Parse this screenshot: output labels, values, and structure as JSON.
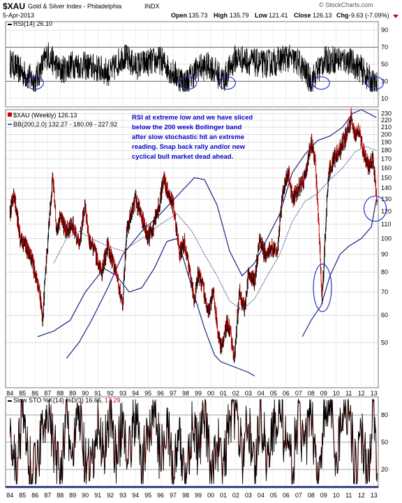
{
  "header": {
    "symbol": "$XAU",
    "name": "Gold & Silver Index - Philadelphia",
    "exchange": "INDX",
    "date": "5-Apr-2013",
    "open_label": "Open",
    "open": "135.73",
    "high_label": "High",
    "high": "135.79",
    "low_label": "Low",
    "low": "121.41",
    "close_label": "Close",
    "close": "126.13",
    "chg_label": "Chg",
    "chg": "-9.63 (-7.09%)",
    "watermark": "© StockCharts.com"
  },
  "colors": {
    "price": "#000000",
    "down": "#cc0000",
    "bollinger": "#1a237e",
    "circle": "#2233cc",
    "annotation": "#0000cc",
    "sto_d": "#cc0000"
  },
  "chart_data": [
    {
      "type": "line",
      "panel": "rsi",
      "legend": "RSI(14) 26.10",
      "yticks": [
        10,
        30,
        50,
        70,
        90
      ],
      "ylim": [
        0,
        100
      ],
      "reference_lines": [
        30,
        70
      ],
      "x": [
        1984,
        1985,
        1986,
        1987,
        1988,
        1989,
        1990,
        1991,
        1992,
        1993,
        1994,
        1995,
        1996,
        1997,
        1998,
        1999,
        2000,
        2001,
        2002,
        2003,
        2004,
        2005,
        2006,
        2007,
        2008,
        2009,
        2010,
        2011,
        2012,
        2013
      ],
      "values": [
        52,
        40,
        30,
        62,
        42,
        50,
        48,
        45,
        40,
        60,
        48,
        52,
        55,
        40,
        28,
        46,
        48,
        31,
        58,
        54,
        50,
        52,
        58,
        52,
        30,
        54,
        56,
        54,
        44,
        26
      ],
      "circles_at": [
        1986,
        1998.2,
        2001.3,
        2008.8,
        2013.1
      ]
    },
    {
      "type": "line",
      "panel": "price",
      "scale": "log",
      "legend_series": "$XAU (Weekly) 126.13",
      "legend_bb": "BB(200,2.0) 132.27 - 180.09 - 227.92",
      "yticks": [
        50,
        60,
        70,
        80,
        90,
        100,
        110,
        120,
        130,
        140,
        150,
        160,
        170,
        180,
        190,
        200,
        210,
        220,
        230
      ],
      "ylim": [
        37,
        236
      ],
      "xticks": [
        "84",
        "85",
        "86",
        "87",
        "88",
        "89",
        "90",
        "91",
        "92",
        "93",
        "94",
        "95",
        "96",
        "97",
        "98",
        "99",
        "00",
        "01",
        "02",
        "03",
        "04",
        "05",
        "06",
        "07",
        "08",
        "09",
        "10",
        "11",
        "12",
        "13"
      ],
      "x": [
        1984.0,
        1984.3,
        1984.8,
        1985.3,
        1985.8,
        1986.3,
        1986.6,
        1987.0,
        1987.4,
        1987.7,
        1988.0,
        1988.5,
        1989.0,
        1989.5,
        1990.0,
        1990.3,
        1990.8,
        1991.3,
        1991.8,
        1992.3,
        1992.8,
        1993.0,
        1993.3,
        1993.7,
        1994.0,
        1994.5,
        1995.0,
        1995.5,
        1996.0,
        1996.2,
        1996.6,
        1997.0,
        1997.5,
        1997.9,
        1998.3,
        1998.7,
        1999.0,
        1999.4,
        1999.8,
        2000.2,
        2000.6,
        2000.9,
        2001.3,
        2001.6,
        2001.9,
        2002.3,
        2002.7,
        2003.0,
        2003.5,
        2003.9,
        2004.3,
        2004.8,
        2005.3,
        2005.8,
        2006.2,
        2006.5,
        2007.0,
        2007.5,
        2008.0,
        2008.3,
        2008.6,
        2008.85,
        2009.0,
        2009.4,
        2009.8,
        2010.3,
        2010.8,
        2011.2,
        2011.5,
        2011.8,
        2012.2,
        2012.6,
        2012.9,
        2013.1,
        2013.27
      ],
      "values": [
        118,
        135,
        100,
        95,
        85,
        72,
        58,
        95,
        150,
        105,
        115,
        105,
        110,
        95,
        125,
        100,
        90,
        80,
        95,
        82,
        70,
        65,
        105,
        120,
        130,
        115,
        100,
        110,
        130,
        150,
        135,
        125,
        90,
        98,
        80,
        66,
        80,
        72,
        60,
        70,
        52,
        48,
        58,
        52,
        45,
        70,
        62,
        80,
        75,
        100,
        90,
        95,
        90,
        140,
        155,
        130,
        140,
        150,
        190,
        170,
        110,
        68,
        80,
        155,
        170,
        180,
        200,
        225,
        200,
        205,
        175,
        160,
        170,
        150,
        126
      ],
      "bb_upper": [
        {
          "x": 1988.5,
          "y": 45
        },
        {
          "x": 1989.5,
          "y": 50
        },
        {
          "x": 1990.5,
          "y": 58
        },
        {
          "x": 1991.8,
          "y": 72
        },
        {
          "x": 1993,
          "y": 90
        },
        {
          "x": 1994.5,
          "y": 105
        },
        {
          "x": 1996,
          "y": 118
        },
        {
          "x": 1997.5,
          "y": 135
        },
        {
          "x": 1998.7,
          "y": 150
        },
        {
          "x": 1999.5,
          "y": 148
        },
        {
          "x": 2000.5,
          "y": 125
        },
        {
          "x": 2001.5,
          "y": 92
        },
        {
          "x": 2002.5,
          "y": 78
        },
        {
          "x": 2003.5,
          "y": 85
        },
        {
          "x": 2004.5,
          "y": 100
        },
        {
          "x": 2005.5,
          "y": 118
        },
        {
          "x": 2006.5,
          "y": 155
        },
        {
          "x": 2007.5,
          "y": 175
        },
        {
          "x": 2008.5,
          "y": 192
        },
        {
          "x": 2009.5,
          "y": 198
        },
        {
          "x": 2010.5,
          "y": 210
        },
        {
          "x": 2011.3,
          "y": 230
        },
        {
          "x": 2012,
          "y": 236
        },
        {
          "x": 2013.2,
          "y": 224
        }
      ],
      "bb_middle": [
        {
          "x": 1987.5,
          "y": 85
        },
        {
          "x": 1988.5,
          "y": 100
        },
        {
          "x": 1989.5,
          "y": 105
        },
        {
          "x": 1990.5,
          "y": 100
        },
        {
          "x": 1991.8,
          "y": 95
        },
        {
          "x": 1993,
          "y": 92
        },
        {
          "x": 1994.5,
          "y": 100
        },
        {
          "x": 1996,
          "y": 110
        },
        {
          "x": 1997.3,
          "y": 118
        },
        {
          "x": 1998.5,
          "y": 105
        },
        {
          "x": 1999.5,
          "y": 90
        },
        {
          "x": 2000.5,
          "y": 78
        },
        {
          "x": 2001.5,
          "y": 66
        },
        {
          "x": 2002.5,
          "y": 62
        },
        {
          "x": 2003.5,
          "y": 67
        },
        {
          "x": 2004.5,
          "y": 78
        },
        {
          "x": 2005.5,
          "y": 90
        },
        {
          "x": 2006.5,
          "y": 112
        },
        {
          "x": 2007.5,
          "y": 128
        },
        {
          "x": 2008.5,
          "y": 135
        },
        {
          "x": 2009.5,
          "y": 148
        },
        {
          "x": 2010.5,
          "y": 160
        },
        {
          "x": 2011.5,
          "y": 178
        },
        {
          "x": 2012.3,
          "y": 185
        },
        {
          "x": 2013.2,
          "y": 180
        }
      ],
      "bb_lower": [
        {
          "x": 1986.2,
          "y": 52
        },
        {
          "x": 1987.5,
          "y": 54
        },
        {
          "x": 1988.8,
          "y": 58
        },
        {
          "x": 1990,
          "y": 70
        },
        {
          "x": 1991.5,
          "y": 82
        },
        {
          "x": 1992.5,
          "y": 78
        },
        {
          "x": 1993.5,
          "y": 70
        },
        {
          "x": 1994.5,
          "y": 72
        },
        {
          "x": 1995.5,
          "y": 82
        },
        {
          "x": 1996.5,
          "y": 98
        },
        {
          "x": 1997.3,
          "y": 100
        },
        {
          "x": 1997.8,
          "y": 88
        },
        {
          "x": 1998.5,
          "y": 72
        },
        {
          "x": 1999.5,
          "y": 55
        },
        {
          "x": 2000.3,
          "y": 46
        },
        {
          "x": 2000.8,
          "y": 44
        },
        {
          "x": 2003,
          "y": 41
        },
        {
          "x": 2003.5,
          "y": 40
        }
      ],
      "bb_lower_recent": [
        {
          "x": 2007.3,
          "y": 52
        },
        {
          "x": 2008,
          "y": 58
        },
        {
          "x": 2008.8,
          "y": 64
        },
        {
          "x": 2009.5,
          "y": 78
        },
        {
          "x": 2010.3,
          "y": 90
        },
        {
          "x": 2011,
          "y": 95
        },
        {
          "x": 2012,
          "y": 100
        },
        {
          "x": 2012.8,
          "y": 108
        },
        {
          "x": 2013.2,
          "y": 130
        }
      ],
      "annotation": [
        "RSI at extreme low and we have sliced",
        "below the 200 week Bollinger band",
        "after slow stochastic hit an extreme",
        "reading. Snap back rally and/or new",
        "cyclical bull market dead ahead."
      ],
      "circles_at": [
        {
          "x": 2008.9,
          "y": 72
        },
        {
          "x": 2013.1,
          "y": 122
        }
      ]
    },
    {
      "type": "line",
      "panel": "stochastic",
      "legend_prefix": "Slow STO %K(14) %D(3)",
      "legend_k": "16.66",
      "legend_d": "17.29",
      "yticks": [
        20,
        50,
        80
      ],
      "ylim": [
        0,
        100
      ],
      "reference_lines": [
        20,
        80
      ],
      "x": [
        1984,
        1984.5,
        1985,
        1985.5,
        1986,
        1986.5,
        1987,
        1987.5,
        1988,
        1988.5,
        1989,
        1989.5,
        1990,
        1990.5,
        1991,
        1991.5,
        1992,
        1992.5,
        1993,
        1993.5,
        1994,
        1994.5,
        1995,
        1995.5,
        1996,
        1996.5,
        1997,
        1997.5,
        1998,
        1998.5,
        1999,
        1999.5,
        2000,
        2000.5,
        2001,
        2001.5,
        2002,
        2002.5,
        2003,
        2003.5,
        2004,
        2004.5,
        2005,
        2005.5,
        2006,
        2006.5,
        2007,
        2007.5,
        2008,
        2008.5,
        2009,
        2009.5,
        2010,
        2010.5,
        2011,
        2011.5,
        2012,
        2012.5,
        2013,
        2013.27
      ],
      "values": [
        70,
        20,
        85,
        30,
        15,
        60,
        95,
        40,
        20,
        75,
        30,
        85,
        25,
        15,
        70,
        40,
        90,
        25,
        80,
        35,
        85,
        20,
        60,
        90,
        30,
        80,
        15,
        50,
        10,
        70,
        40,
        85,
        20,
        55,
        15,
        80,
        90,
        30,
        75,
        20,
        85,
        30,
        65,
        95,
        40,
        20,
        80,
        35,
        90,
        12,
        70,
        95,
        30,
        85,
        95,
        20,
        60,
        15,
        92,
        17
      ]
    }
  ]
}
